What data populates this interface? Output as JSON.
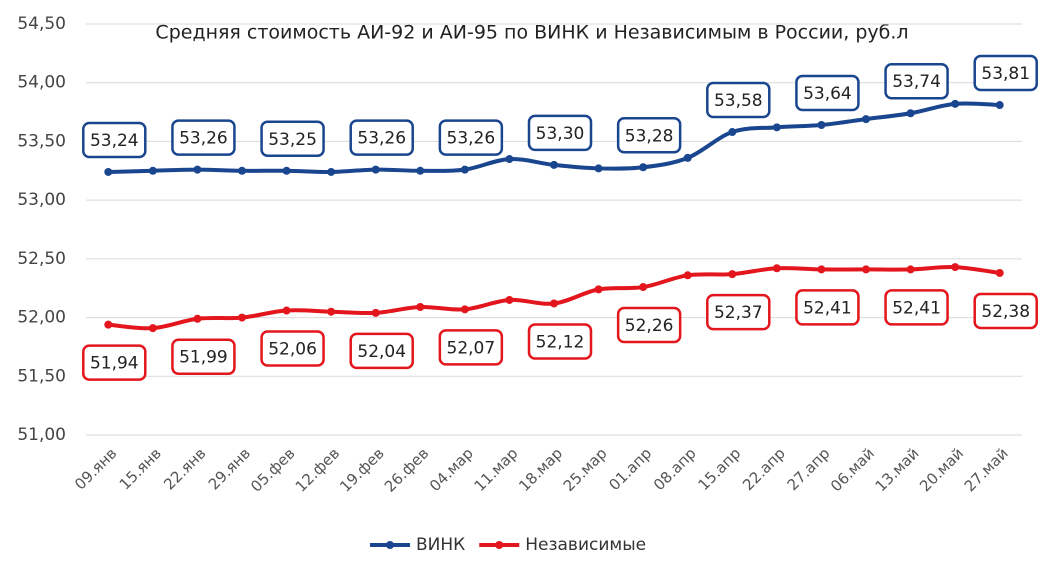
{
  "chart_data": {
    "type": "line",
    "title": "Средняя стоимость АИ-92 и АИ-95 по ВИНК и Независимым в России, руб.л",
    "categories": [
      "09.янв",
      "15.янв",
      "22.янв",
      "29.янв",
      "05.фев",
      "12.фев",
      "19.фев",
      "26.фев",
      "04.мар",
      "11.мар",
      "18.мар",
      "25.мар",
      "01.апр",
      "08.апр",
      "15.апр",
      "22.апр",
      "27.апр",
      "06.май",
      "13.май",
      "20.май",
      "27.май"
    ],
    "series": [
      {
        "name": "ВИНК",
        "color": "#1a468f",
        "values": [
          53.24,
          53.25,
          53.26,
          53.25,
          53.25,
          53.24,
          53.26,
          53.25,
          53.26,
          53.35,
          53.3,
          53.27,
          53.28,
          53.36,
          53.58,
          53.62,
          53.64,
          53.69,
          53.74,
          53.82,
          53.81
        ],
        "value_labels": [
          "53,24",
          null,
          "53,26",
          null,
          "53,25",
          null,
          "53,26",
          null,
          "53,26",
          null,
          "53,30",
          null,
          "53,28",
          null,
          "53,58",
          null,
          "53,64",
          null,
          "53,74",
          null,
          "53,81"
        ]
      },
      {
        "name": "Независимые",
        "color": "#e3161d",
        "values": [
          51.94,
          51.91,
          51.99,
          52.0,
          52.06,
          52.05,
          52.04,
          52.09,
          52.07,
          52.15,
          52.12,
          52.24,
          52.26,
          52.36,
          52.37,
          52.42,
          52.41,
          52.41,
          52.41,
          52.43,
          52.38
        ],
        "value_labels": [
          "51,94",
          null,
          "51,99",
          null,
          "52,06",
          null,
          "52,04",
          null,
          "52,07",
          null,
          "52,12",
          null,
          "52,26",
          null,
          "52,37",
          null,
          "52,41",
          null,
          "52,41",
          null,
          "52,38"
        ]
      }
    ],
    "ylim": [
      51,
      54.5
    ],
    "yticks": [
      {
        "value": 51,
        "label": "51,00"
      },
      {
        "value": 51.5,
        "label": "51,50"
      },
      {
        "value": 52,
        "label": "52,00"
      },
      {
        "value": 52.5,
        "label": "52,50"
      },
      {
        "value": 53,
        "label": "53,00"
      },
      {
        "value": 53.5,
        "label": "53,50"
      },
      {
        "value": 54,
        "label": "54,00"
      },
      {
        "value": 54.5,
        "label": "54,50"
      }
    ],
    "grid": true,
    "legend": "bottom"
  }
}
